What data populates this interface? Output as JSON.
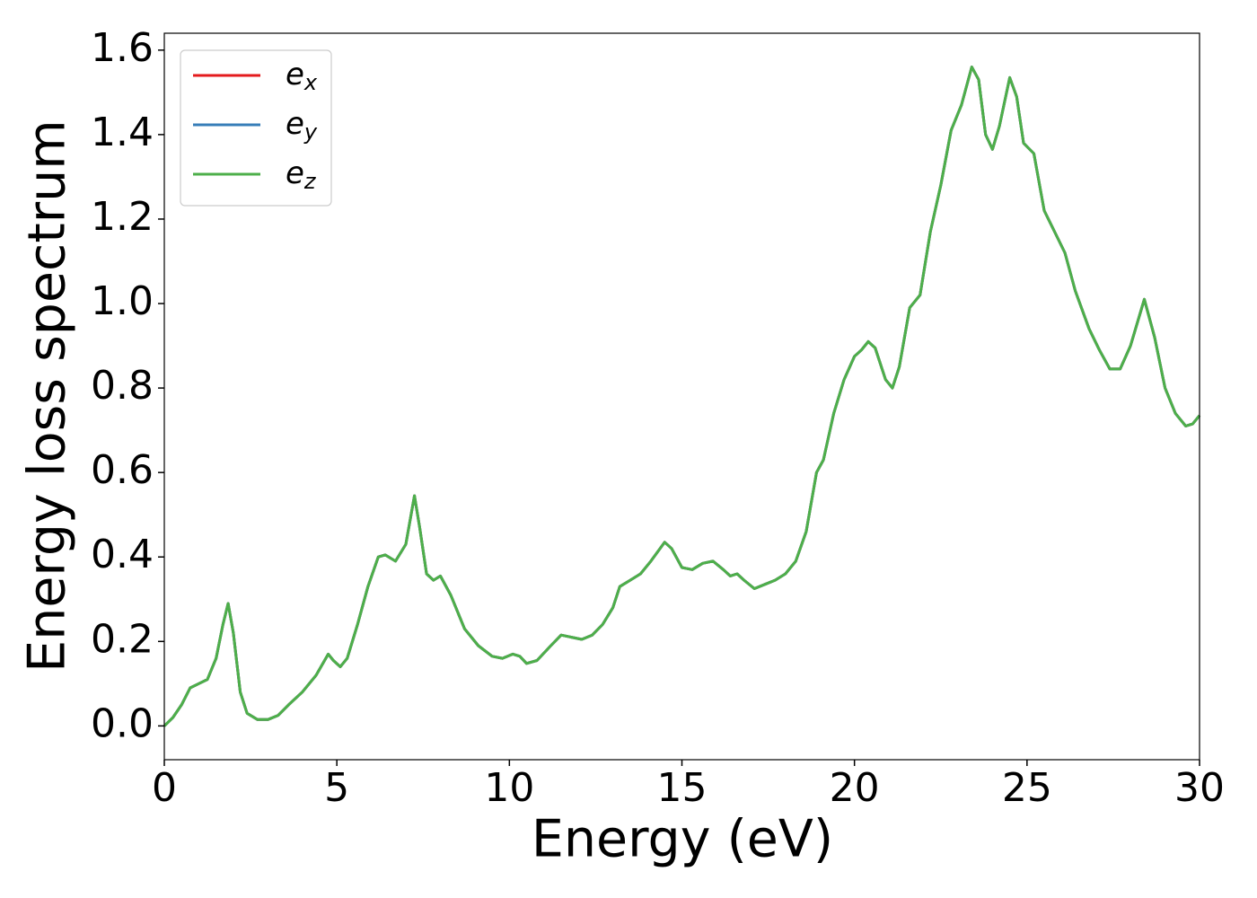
{
  "chart_data": {
    "type": "line",
    "xlabel": "Energy (eV)",
    "ylabel": "Energy loss spectrum",
    "xlim": [
      0,
      30
    ],
    "xticks": [
      0,
      5,
      10,
      15,
      20,
      25,
      30
    ],
    "ylim": [
      -0.08,
      1.64
    ],
    "yticks": [
      {
        "value": 0,
        "label": "0.0"
      },
      0.2,
      0.4,
      0.6,
      0.8,
      {
        "value": 1,
        "label": "1.0"
      },
      1.2,
      1.4,
      1.6
    ],
    "legend": "upper left",
    "x": [
      0,
      0.25,
      0.5,
      0.75,
      1.0,
      1.25,
      1.5,
      1.7,
      1.85,
      2.0,
      2.2,
      2.4,
      2.7,
      3.0,
      3.3,
      3.6,
      4.0,
      4.4,
      4.75,
      4.9,
      5.1,
      5.3,
      5.6,
      5.9,
      6.2,
      6.4,
      6.7,
      7.0,
      7.25,
      7.4,
      7.6,
      7.8,
      8.0,
      8.3,
      8.7,
      9.1,
      9.5,
      9.8,
      10.1,
      10.3,
      10.5,
      10.8,
      11.2,
      11.5,
      11.8,
      12.1,
      12.4,
      12.7,
      13.0,
      13.2,
      13.5,
      13.8,
      14.1,
      14.5,
      14.7,
      15.0,
      15.3,
      15.6,
      15.9,
      16.2,
      16.4,
      16.6,
      16.8,
      17.1,
      17.4,
      17.7,
      18.0,
      18.3,
      18.6,
      18.9,
      19.1,
      19.4,
      19.7,
      20.0,
      20.2,
      20.4,
      20.6,
      20.9,
      21.1,
      21.3,
      21.6,
      21.9,
      22.2,
      22.5,
      22.8,
      23.1,
      23.4,
      23.6,
      23.8,
      24.0,
      24.2,
      24.5,
      24.7,
      24.9,
      25.2,
      25.5,
      25.8,
      26.1,
      26.4,
      26.8,
      27.1,
      27.4,
      27.7,
      28.0,
      28.4,
      28.7,
      29.0,
      29.3,
      29.6,
      29.8,
      30.0
    ],
    "series": [
      {
        "name": "ex",
        "color": "#e41a1c",
        "values": [
          0,
          0.02,
          0.05,
          0.09,
          0.1,
          0.11,
          0.16,
          0.24,
          0.29,
          0.22,
          0.08,
          0.03,
          0.015,
          0.015,
          0.025,
          0.05,
          0.08,
          0.12,
          0.17,
          0.155,
          0.14,
          0.16,
          0.24,
          0.33,
          0.4,
          0.405,
          0.39,
          0.43,
          0.545,
          0.47,
          0.36,
          0.345,
          0.355,
          0.31,
          0.23,
          0.19,
          0.165,
          0.16,
          0.17,
          0.165,
          0.148,
          0.155,
          0.19,
          0.215,
          0.21,
          0.205,
          0.215,
          0.24,
          0.28,
          0.33,
          0.345,
          0.36,
          0.39,
          0.435,
          0.42,
          0.375,
          0.37,
          0.385,
          0.39,
          0.37,
          0.355,
          0.36,
          0.345,
          0.325,
          0.335,
          0.345,
          0.36,
          0.39,
          0.46,
          0.6,
          0.63,
          0.74,
          0.82,
          0.875,
          0.89,
          0.91,
          0.895,
          0.82,
          0.8,
          0.85,
          0.99,
          1.02,
          1.17,
          1.28,
          1.41,
          1.47,
          1.56,
          1.53,
          1.4,
          1.365,
          1.42,
          1.535,
          1.49,
          1.38,
          1.355,
          1.22,
          1.17,
          1.12,
          1.03,
          0.94,
          0.89,
          0.845,
          0.845,
          0.9,
          1.01,
          0.92,
          0.8,
          0.74,
          0.71,
          0.715,
          0.735
        ]
      },
      {
        "name": "ey",
        "color": "#377eb8",
        "values": [
          0,
          0.02,
          0.05,
          0.09,
          0.1,
          0.11,
          0.16,
          0.24,
          0.29,
          0.22,
          0.08,
          0.03,
          0.015,
          0.015,
          0.025,
          0.05,
          0.08,
          0.12,
          0.17,
          0.155,
          0.14,
          0.16,
          0.24,
          0.33,
          0.4,
          0.405,
          0.39,
          0.43,
          0.545,
          0.47,
          0.36,
          0.345,
          0.355,
          0.31,
          0.23,
          0.19,
          0.165,
          0.16,
          0.17,
          0.165,
          0.148,
          0.155,
          0.19,
          0.215,
          0.21,
          0.205,
          0.215,
          0.24,
          0.28,
          0.33,
          0.345,
          0.36,
          0.39,
          0.435,
          0.42,
          0.375,
          0.37,
          0.385,
          0.39,
          0.37,
          0.355,
          0.36,
          0.345,
          0.325,
          0.335,
          0.345,
          0.36,
          0.39,
          0.46,
          0.6,
          0.63,
          0.74,
          0.82,
          0.875,
          0.89,
          0.91,
          0.895,
          0.82,
          0.8,
          0.85,
          0.99,
          1.02,
          1.17,
          1.28,
          1.41,
          1.47,
          1.56,
          1.53,
          1.4,
          1.365,
          1.42,
          1.535,
          1.49,
          1.38,
          1.355,
          1.22,
          1.17,
          1.12,
          1.03,
          0.94,
          0.89,
          0.845,
          0.845,
          0.9,
          1.01,
          0.92,
          0.8,
          0.74,
          0.71,
          0.715,
          0.735
        ]
      },
      {
        "name": "ez",
        "color": "#4daf4a",
        "values": [
          0,
          0.02,
          0.05,
          0.09,
          0.1,
          0.11,
          0.16,
          0.24,
          0.29,
          0.22,
          0.08,
          0.03,
          0.015,
          0.015,
          0.025,
          0.05,
          0.08,
          0.12,
          0.17,
          0.155,
          0.14,
          0.16,
          0.24,
          0.33,
          0.4,
          0.405,
          0.39,
          0.43,
          0.545,
          0.47,
          0.36,
          0.345,
          0.355,
          0.31,
          0.23,
          0.19,
          0.165,
          0.16,
          0.17,
          0.165,
          0.148,
          0.155,
          0.19,
          0.215,
          0.21,
          0.205,
          0.215,
          0.24,
          0.28,
          0.33,
          0.345,
          0.36,
          0.39,
          0.435,
          0.42,
          0.375,
          0.37,
          0.385,
          0.39,
          0.37,
          0.355,
          0.36,
          0.345,
          0.325,
          0.335,
          0.345,
          0.36,
          0.39,
          0.46,
          0.6,
          0.63,
          0.74,
          0.82,
          0.875,
          0.89,
          0.91,
          0.895,
          0.82,
          0.8,
          0.85,
          0.99,
          1.02,
          1.17,
          1.28,
          1.41,
          1.47,
          1.56,
          1.53,
          1.4,
          1.365,
          1.42,
          1.535,
          1.49,
          1.38,
          1.355,
          1.22,
          1.17,
          1.12,
          1.03,
          0.94,
          0.89,
          0.845,
          0.845,
          0.9,
          1.01,
          0.92,
          0.8,
          0.74,
          0.71,
          0.715,
          0.735
        ]
      }
    ]
  }
}
